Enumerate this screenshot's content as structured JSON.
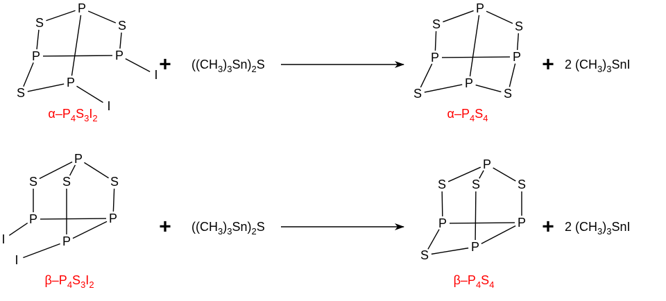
{
  "colors": {
    "label": "#ff0000",
    "bonds": "#000000"
  },
  "reactions": [
    {
      "reactant": {
        "atoms": [
          "P",
          "S",
          "S",
          "P",
          "P",
          "P",
          "S",
          "I",
          "I"
        ],
        "label": [
          {
            "t": "α–P"
          },
          {
            "t": "4",
            "sub": true
          },
          {
            "t": "S"
          },
          {
            "t": "3",
            "sub": true
          },
          {
            "t": "I"
          },
          {
            "t": "2",
            "sub": true
          }
        ]
      },
      "plus": "+",
      "reagent": [
        {
          "t": "((CH"
        },
        {
          "t": "3",
          "sub": true
        },
        {
          "t": ")"
        },
        {
          "t": "3",
          "sub": true
        },
        {
          "t": "Sn)"
        },
        {
          "t": "2",
          "sub": true
        },
        {
          "t": "S"
        }
      ],
      "product": {
        "atoms": [
          "P",
          "S",
          "S",
          "P",
          "P",
          "P",
          "S",
          "S"
        ],
        "label": [
          {
            "t": "α–P"
          },
          {
            "t": "4",
            "sub": true
          },
          {
            "t": "S"
          },
          {
            "t": "4",
            "sub": true
          }
        ]
      },
      "plus2": "+",
      "byproduct": [
        {
          "t": "2 (CH"
        },
        {
          "t": "3",
          "sub": true
        },
        {
          "t": ")"
        },
        {
          "t": "3",
          "sub": true
        },
        {
          "t": "SnI"
        }
      ]
    },
    {
      "reactant": {
        "atoms": [
          "P",
          "S",
          "S",
          "S",
          "P",
          "P",
          "P",
          "I",
          "I"
        ],
        "label": [
          {
            "t": "β–P"
          },
          {
            "t": "4",
            "sub": true
          },
          {
            "t": "S"
          },
          {
            "t": "3",
            "sub": true
          },
          {
            "t": "I"
          },
          {
            "t": "2",
            "sub": true
          }
        ]
      },
      "plus": "+",
      "reagent": [
        {
          "t": "((CH"
        },
        {
          "t": "3",
          "sub": true
        },
        {
          "t": ")"
        },
        {
          "t": "3",
          "sub": true
        },
        {
          "t": "Sn)"
        },
        {
          "t": "2",
          "sub": true
        },
        {
          "t": "S"
        }
      ],
      "product": {
        "atoms": [
          "P",
          "S",
          "S",
          "S",
          "P",
          "P",
          "P",
          "S"
        ],
        "label": [
          {
            "t": "β–P"
          },
          {
            "t": "4",
            "sub": true
          },
          {
            "t": "S"
          },
          {
            "t": "4",
            "sub": true
          }
        ]
      },
      "plus2": "+",
      "byproduct": [
        {
          "t": "2 (CH"
        },
        {
          "t": "3",
          "sub": true
        },
        {
          "t": ")"
        },
        {
          "t": "3",
          "sub": true
        },
        {
          "t": "SnI"
        }
      ]
    }
  ]
}
